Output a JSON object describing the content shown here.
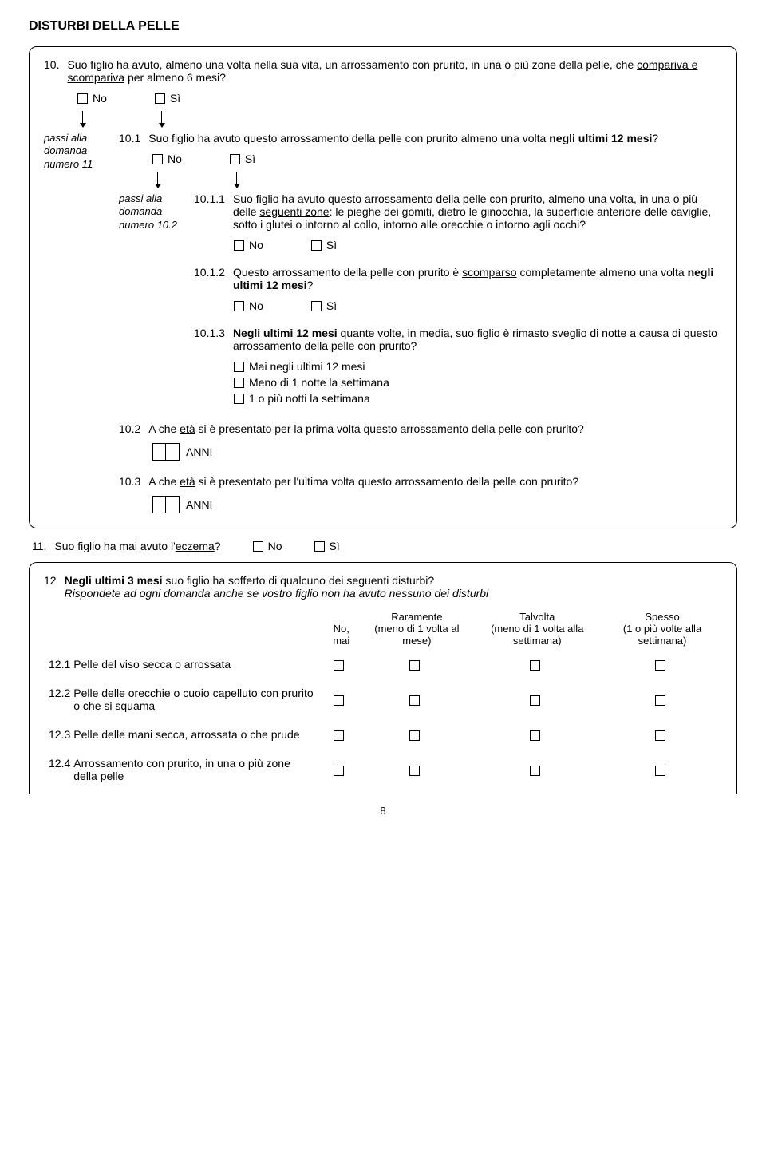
{
  "title": "DISTURBI DELLA PELLE",
  "q10": {
    "num": "10.",
    "text_pre": "Suo figlio ha avuto, almeno una volta nella sua vita, un arrossamento con prurito, in una o più zone della pelle, che ",
    "text_underline": "compariva e scompariva",
    "text_post": " per almeno 6 mesi?",
    "no": "No",
    "si": "Sì"
  },
  "passi11": "passi alla domanda numero 11",
  "q10_1": {
    "num": "10.1",
    "text_pre": "Suo figlio ha avuto questo arrossamento della pelle con prurito almeno una volta ",
    "bold": "negli ultimi 12 mesi",
    "text_post": "?",
    "no": "No",
    "si": "Sì"
  },
  "passi10_2": "passi alla domanda numero 10.2",
  "q10_1_1": {
    "num": "10.1.1",
    "text_pre": "Suo figlio ha avuto questo arrossamento della pelle con prurito, almeno una volta, in una o più delle ",
    "underline": "seguenti zone",
    "text_post": ": le pieghe dei gomiti, dietro le ginocchia, la superficie anteriore delle caviglie, sotto i glutei o intorno al collo, intorno alle orecchie o intorno agli occhi?",
    "no": "No",
    "si": "Sì"
  },
  "q10_1_2": {
    "num": "10.1.2",
    "text_pre": "Questo arrossamento della pelle con prurito è ",
    "underline": "scomparso",
    "text_mid": " completamente almeno una volta ",
    "bold": "negli ultimi 12 mesi",
    "text_post": "?",
    "no": "No",
    "si": "Sì"
  },
  "q10_1_3": {
    "num": "10.1.3",
    "bold": "Negli ultimi 12 mesi",
    "text_mid": " quante volte, in media, suo figlio è rimasto ",
    "underline": "sveglio di notte",
    "text_post": " a causa di questo arrossamento della pelle con prurito?",
    "opt1": "Mai negli ultimi 12 mesi",
    "opt2": "Meno di 1 notte la settimana",
    "opt3": "1 o più notti la settimana"
  },
  "q10_2": {
    "num": "10.2",
    "text_pre": "A che ",
    "underline": "età",
    "text_post": " si è presentato per la prima volta questo arrossamento della pelle con prurito?",
    "anni": "ANNI"
  },
  "q10_3": {
    "num": "10.3",
    "text_pre": "A che ",
    "underline": "età",
    "text_post": " si è presentato per l'ultima volta questo arrossamento della pelle con prurito?",
    "anni": "ANNI"
  },
  "q11": {
    "num": "11.",
    "text_pre": "Suo figlio ha mai avuto l'",
    "underline": "eczema",
    "text_post": "?",
    "no": "No",
    "si": "Sì"
  },
  "q12": {
    "num": "12",
    "bold": "Negli ultimi 3 mesi",
    "text_post": " suo figlio ha sofferto di qualcuno dei seguenti disturbi?",
    "instr": "Rispondete ad ogni domanda anche se vostro figlio non ha avuto nessuno dei disturbi",
    "col1": "No, mai",
    "col2a": "Raramente",
    "col2b": "(meno di 1 volta al mese)",
    "col3a": "Talvolta",
    "col3b": "(meno di 1 volta alla settimana)",
    "col4a": "Spesso",
    "col4b": "(1 o più volte alla settimana)",
    "rows": [
      {
        "num": "12.1",
        "label": "Pelle del viso secca o arrossata"
      },
      {
        "num": "12.2",
        "label": "Pelle delle orecchie o cuoio capelluto con prurito o che si squama"
      },
      {
        "num": "12.3",
        "label": "Pelle delle mani secca, arrossata o che prude"
      },
      {
        "num": "12.4",
        "label": "Arrossamento con prurito, in una o più zone della pelle"
      }
    ]
  },
  "page": "8"
}
